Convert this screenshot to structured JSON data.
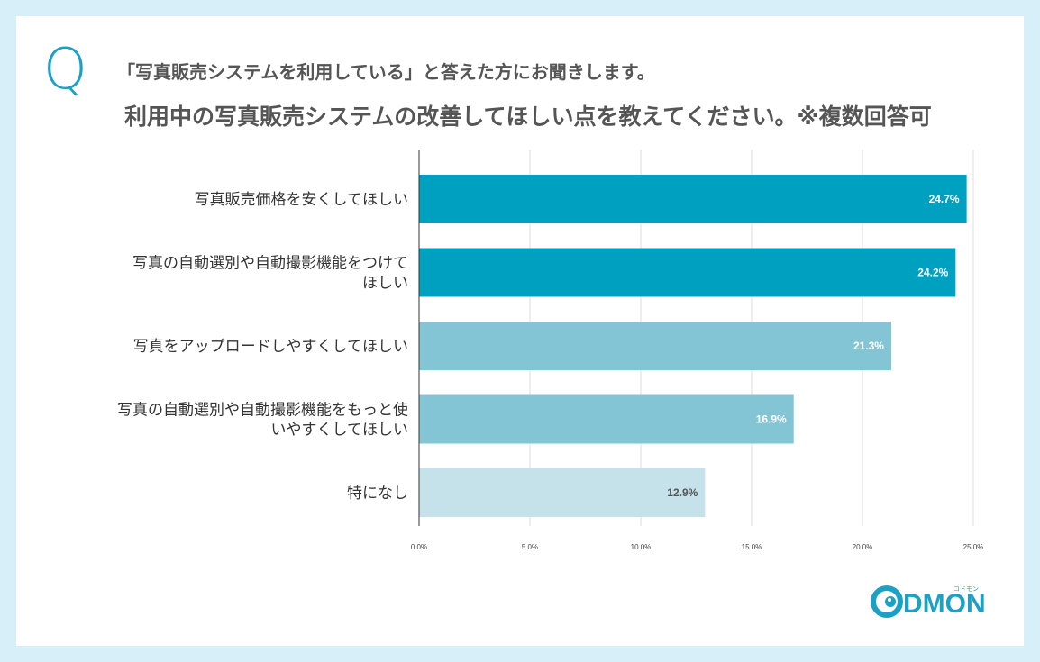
{
  "question": {
    "mark": "Q",
    "line1": "「写真販売システムを利用している」と答えた方にお聞きします。",
    "line2": "利用中の写真販売システムの改善してほしい点を教えてください。※複数回答可"
  },
  "logo": {
    "text": "DMON",
    "ruby": "コドモン"
  },
  "colors": {
    "background": "#d6eff8",
    "accent": "#1ca1c4",
    "bar_dark": "#00a0c1",
    "bar_mid": "#84c5d5",
    "bar_light": "#c5e2ea"
  },
  "chart_data": {
    "type": "bar",
    "orientation": "horizontal",
    "categories": [
      [
        "写真販売価格を安くしてほしい"
      ],
      [
        "写真の自動選別や自動撮影機能をつけて",
        "ほしい"
      ],
      [
        "写真をアップロードしやすくしてほしい"
      ],
      [
        "写真の自動選別や自動撮影機能をもっと使",
        "いやすくしてほしい"
      ],
      [
        "特になし"
      ]
    ],
    "values": [
      24.7,
      24.2,
      21.3,
      16.9,
      12.9
    ],
    "value_labels": [
      "24.7%",
      "24.2%",
      "21.3%",
      "16.9%",
      "12.9%"
    ],
    "bar_colors": [
      "#00a0c1",
      "#00a0c1",
      "#84c5d5",
      "#84c5d5",
      "#c5e2ea"
    ],
    "label_colors": [
      "#ffffff",
      "#ffffff",
      "#ffffff",
      "#ffffff",
      "#555555"
    ],
    "xlim": [
      0,
      25
    ],
    "xticks": [
      0,
      5,
      10,
      15,
      20,
      25
    ],
    "xtick_labels": [
      "0.0%",
      "5.0%",
      "10.0%",
      "15.0%",
      "20.0%",
      "25.0%"
    ],
    "grid": true,
    "legend": "none"
  }
}
